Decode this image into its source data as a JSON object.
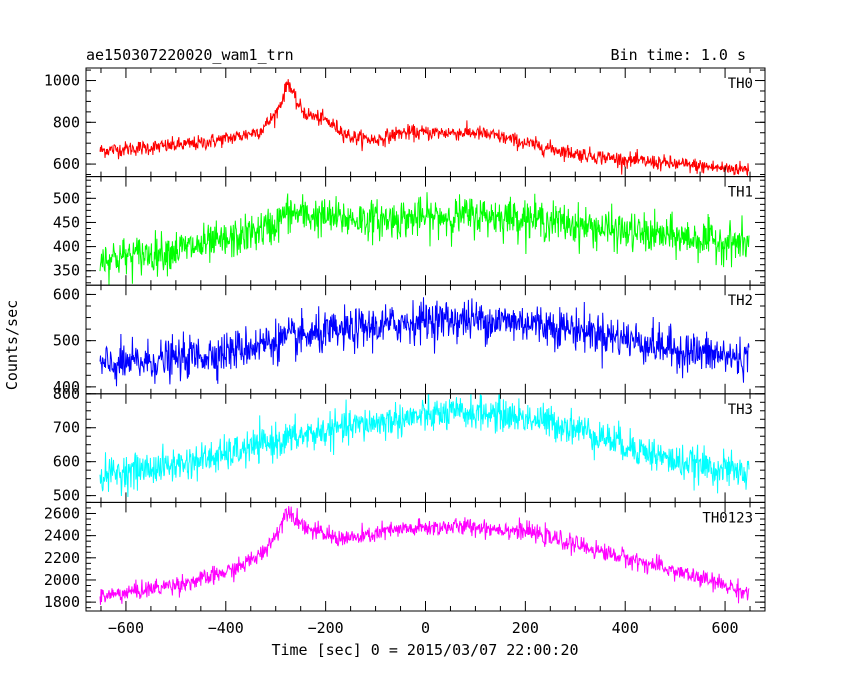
{
  "chart_data": {
    "type": "line",
    "title": "ae150307220020_wam1_trn",
    "subtitle": "Bin time: 1.0 s",
    "xlabel": "Time [sec] 0 = 2015/03/07 22:00:20",
    "ylabel": "Counts/sec",
    "xlim": [
      -680,
      680
    ],
    "x_ticks": [
      -600,
      -400,
      -200,
      0,
      200,
      400,
      600
    ],
    "x_tick_labels": [
      "−600",
      "−400",
      "−200",
      "0",
      "200",
      "400",
      "600"
    ],
    "x_range": [
      -652,
      648
    ],
    "grid": false,
    "panels": [
      {
        "name": "TH0",
        "color": "#ff0000",
        "ylim": [
          540,
          1060
        ],
        "y_ticks": [
          600,
          800,
          1000
        ],
        "x_knots": [
          -652,
          -550,
          -450,
          -380,
          -330,
          -300,
          -285,
          -275,
          -260,
          -240,
          -200,
          -150,
          -100,
          -50,
          0,
          50,
          100,
          150,
          200,
          300,
          400,
          500,
          600,
          648
        ],
        "y_knots": [
          665,
          680,
          700,
          730,
          760,
          840,
          920,
          1000,
          900,
          840,
          810,
          730,
          715,
          750,
          750,
          750,
          750,
          730,
          700,
          650,
          620,
          600,
          580,
          575
        ],
        "noise": 18
      },
      {
        "name": "TH1",
        "color": "#00ff00",
        "ylim": [
          320,
          545
        ],
        "y_ticks": [
          350,
          400,
          450,
          500
        ],
        "x_knots": [
          -652,
          -550,
          -400,
          -300,
          -280,
          -200,
          -100,
          0,
          100,
          200,
          300,
          400,
          500,
          648
        ],
        "y_knots": [
          375,
          385,
          410,
          445,
          470,
          460,
          455,
          460,
          465,
          460,
          445,
          430,
          420,
          405
        ],
        "noise": 20
      },
      {
        "name": "TH2",
        "color": "#0000ff",
        "ylim": [
          385,
          620
        ],
        "y_ticks": [
          400,
          500,
          600
        ],
        "x_knots": [
          -652,
          -500,
          -400,
          -300,
          -200,
          -100,
          0,
          100,
          200,
          300,
          400,
          500,
          648
        ],
        "y_knots": [
          445,
          460,
          475,
          500,
          515,
          530,
          545,
          545,
          540,
          525,
          505,
          480,
          460
        ],
        "noise": 22
      },
      {
        "name": "TH3",
        "color": "#00ffff",
        "ylim": [
          480,
          800
        ],
        "y_ticks": [
          500,
          600,
          700,
          800
        ],
        "x_knots": [
          -652,
          -500,
          -400,
          -300,
          -200,
          -100,
          0,
          100,
          200,
          300,
          400,
          500,
          648
        ],
        "y_knots": [
          560,
          590,
          620,
          660,
          690,
          715,
          735,
          745,
          730,
          700,
          650,
          600,
          565
        ],
        "noise": 25
      },
      {
        "name": "TH0123",
        "color": "#ff00ff",
        "ylim": [
          1720,
          2700
        ],
        "y_ticks": [
          1800,
          2000,
          2200,
          2400,
          2600
        ],
        "x_knots": [
          -652,
          -550,
          -450,
          -380,
          -330,
          -300,
          -285,
          -275,
          -260,
          -230,
          -180,
          -130,
          -80,
          0,
          50,
          100,
          200,
          300,
          400,
          500,
          600,
          648
        ],
        "y_knots": [
          1850,
          1920,
          2000,
          2100,
          2230,
          2400,
          2550,
          2650,
          2550,
          2450,
          2380,
          2380,
          2440,
          2470,
          2480,
          2480,
          2440,
          2320,
          2200,
          2080,
          1950,
          1880
        ],
        "noise": 40
      }
    ]
  }
}
